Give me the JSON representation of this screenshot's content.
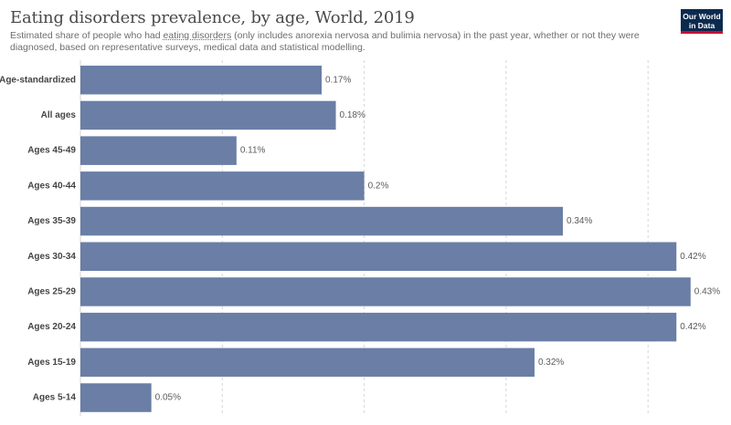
{
  "header": {
    "title": "Eating disorders prevalence, by age, World, 2019",
    "subtitle_pre": "Estimated share of people who had ",
    "subtitle_link": "eating disorders",
    "subtitle_post": " (only includes anorexia nervosa and bulimia nervosa) in the past year, whether or not they were diagnosed, based on representative surveys, medical data and statistical modelling.",
    "logo_line1": "Our World",
    "logo_line2": "in Data"
  },
  "colors": {
    "bar": "#6a7ea6",
    "grid": "#d6d6d6",
    "logo_bg": "#0b2a4e",
    "logo_accent": "#c8102e"
  },
  "chart_data": {
    "type": "bar",
    "orientation": "horizontal",
    "categories": [
      "Age-standardized",
      "All ages",
      "Ages 45-49",
      "Ages 40-44",
      "Ages 35-39",
      "Ages 30-34",
      "Ages 25-29",
      "Ages 20-24",
      "Ages 15-19",
      "Ages 5-14"
    ],
    "values": [
      0.17,
      0.18,
      0.11,
      0.2,
      0.34,
      0.42,
      0.43,
      0.42,
      0.32,
      0.05
    ],
    "value_labels": [
      "0.17%",
      "0.18%",
      "0.11%",
      "0.2%",
      "0.34%",
      "0.42%",
      "0.43%",
      "0.42%",
      "0.32%",
      "0.05%"
    ],
    "unit": "%",
    "xlim": [
      0,
      0.45
    ],
    "grid": true,
    "legend": "none"
  }
}
